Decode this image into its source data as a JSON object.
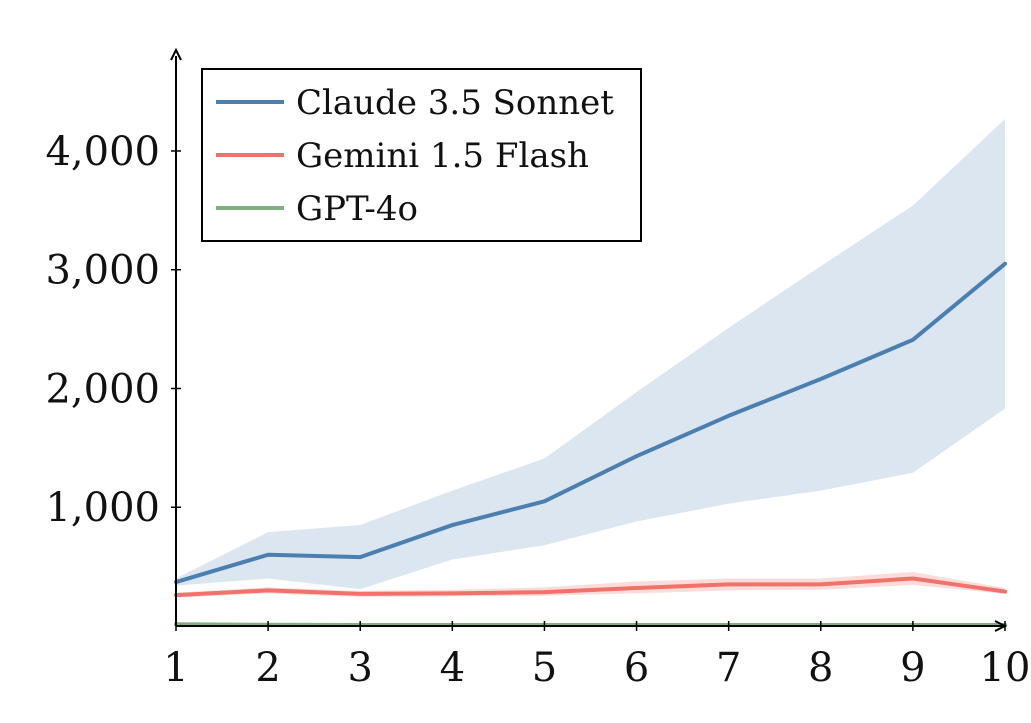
{
  "chart_data": {
    "type": "line",
    "title": "",
    "xlabel": "",
    "ylabel": "",
    "x": [
      1,
      2,
      3,
      4,
      5,
      6,
      7,
      8,
      9,
      10
    ],
    "x_ticks": [
      "1",
      "2",
      "3",
      "4",
      "5",
      "6",
      "7",
      "8",
      "9",
      "10"
    ],
    "y_ticks": [
      {
        "value": 1000,
        "label": "1,000"
      },
      {
        "value": 2000,
        "label": "2,000"
      },
      {
        "value": 3000,
        "label": "3,000"
      },
      {
        "value": 4000,
        "label": "4,000"
      }
    ],
    "xlim": [
      1,
      10
    ],
    "ylim": [
      0,
      4850
    ],
    "grid": false,
    "legend_position": "top-left",
    "series": [
      {
        "name": "Claude 3.5 Sonnet",
        "color": "#4a7fb0",
        "band_color": "#dbe6f1",
        "values": [
          370,
          600,
          580,
          850,
          1050,
          1430,
          1770,
          2080,
          2410,
          3050
        ],
        "lower": [
          340,
          400,
          310,
          560,
          680,
          880,
          1030,
          1140,
          1290,
          1830
        ],
        "upper": [
          400,
          790,
          850,
          1140,
          1410,
          1970,
          2510,
          3030,
          3540,
          4270
        ]
      },
      {
        "name": "Gemini 1.5 Flash",
        "color": "#f0726a",
        "band_color": "#fbdcda",
        "values": [
          260,
          300,
          270,
          275,
          285,
          320,
          350,
          350,
          400,
          290
        ],
        "lower": [
          240,
          275,
          245,
          250,
          255,
          275,
          300,
          305,
          345,
          270
        ],
        "upper": [
          280,
          325,
          295,
          305,
          325,
          375,
          400,
          400,
          455,
          320
        ]
      },
      {
        "name": "GPT-4o",
        "color": "#7fb07f",
        "band_color": "#dcecdc",
        "values": [
          15,
          10,
          8,
          8,
          8,
          8,
          8,
          8,
          8,
          8
        ],
        "lower": [
          5,
          5,
          4,
          4,
          4,
          4,
          4,
          4,
          4,
          4
        ],
        "upper": [
          25,
          18,
          14,
          14,
          14,
          14,
          14,
          14,
          14,
          14
        ]
      }
    ]
  }
}
